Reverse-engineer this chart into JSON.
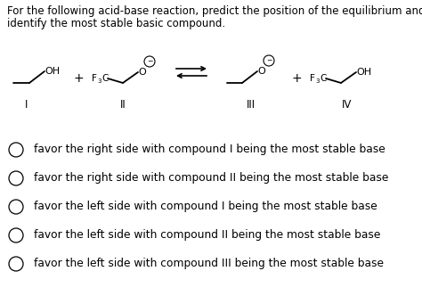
{
  "title_line1": "For the following acid-base reaction, predict the position of the equilibrium and",
  "title_line2": "identify the most stable basic compound.",
  "options": [
    "favor the right side with compound I being the most stable base",
    "favor the right side with compound II being the most stable base",
    "favor the left side with compound I being the most stable base",
    "favor the left side with compound II being the most stable base",
    "favor the left side with compound III being the most stable base"
  ],
  "bg_color": "#ffffff",
  "text_color": "#000000",
  "font_size_title": 8.5,
  "font_size_options": 8.8,
  "font_size_chem": 8.0,
  "font_size_roman": 8.5
}
